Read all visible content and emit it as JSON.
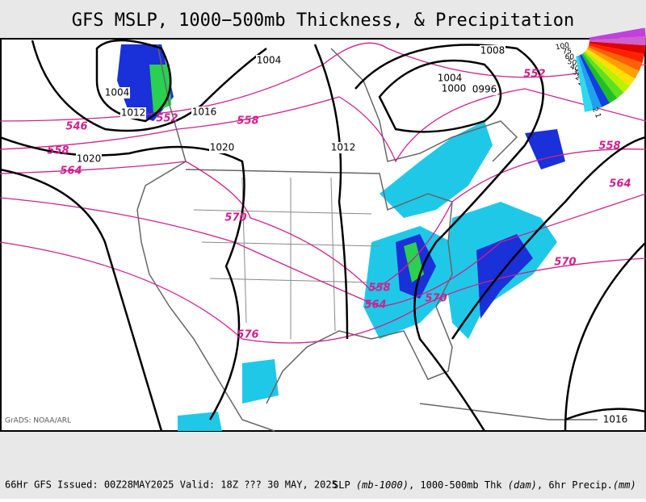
{
  "header": {
    "title": "GFS MSLP, 1000−500mb Thickness, & Precipitation"
  },
  "legend": {
    "labels": [
      "100",
      "75",
      "60",
      "50",
      "40",
      "30",
      "25",
      "20",
      "15",
      "10",
      "5",
      "2",
      "1"
    ]
  },
  "map": {
    "pressure_labels": [
      "1004",
      "1008",
      "1004",
      "1012",
      "1016",
      "1004",
      "1000",
      "0996",
      "1020",
      "1012",
      "1020",
      "1016"
    ],
    "thickness_labels": [
      "546",
      "552",
      "558",
      "558",
      "564",
      "570",
      "576",
      "552",
      "558",
      "564",
      "570",
      "558",
      "564",
      "570"
    ],
    "credit": "GrADS: NOAA/ARL"
  },
  "footer": {
    "run": "66Hr GFS Issued: 00Z28MAY2025 Valid: 18Z ??? 30 MAY, 2025",
    "parts": [
      "SLP ",
      "(mb-1000)",
      ", 1000-500mb Thk ",
      "(dam)",
      ", 6hr Precip.",
      "(mm)"
    ]
  }
}
